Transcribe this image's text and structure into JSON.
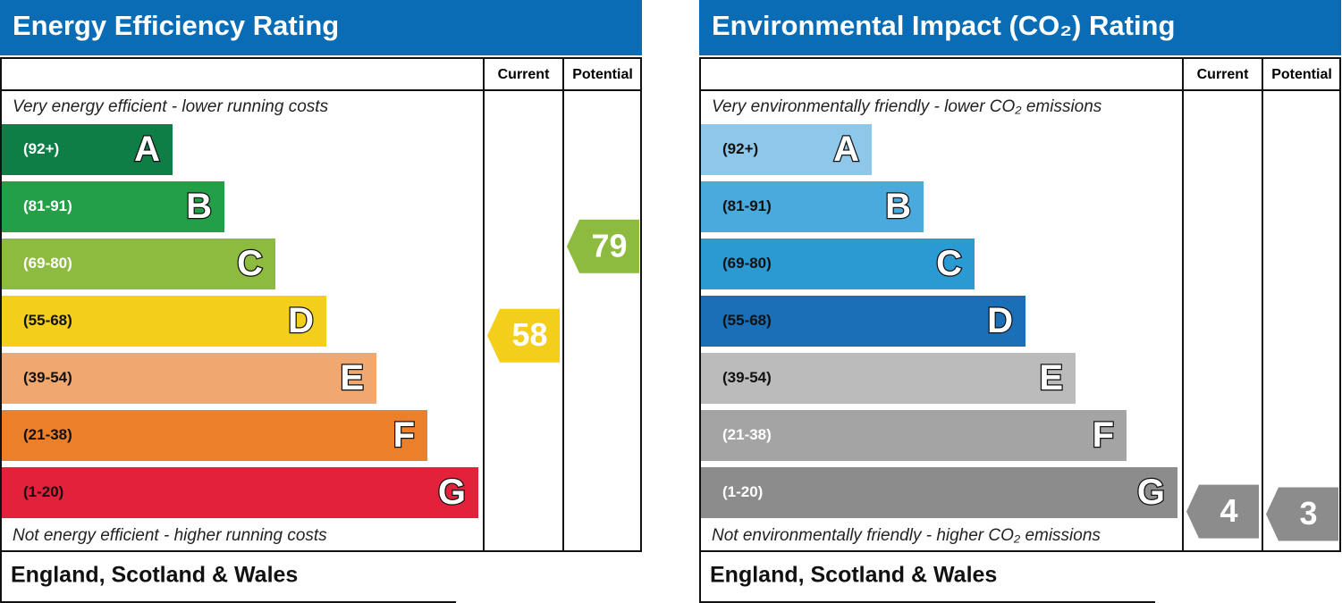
{
  "panels": [
    {
      "title": "Energy Efficiency Rating",
      "header": {
        "current": "Current",
        "potential": "Potential"
      },
      "top_note": "Very energy efficient - lower running costs",
      "bottom_note": "Not energy efficient - higher running costs",
      "bands": [
        {
          "range": "(92+)",
          "letter": "A",
          "color": "#0f7e46"
        },
        {
          "range": "(81-91)",
          "letter": "B",
          "color": "#23a047"
        },
        {
          "range": "(69-80)",
          "letter": "C",
          "color": "#8cbb40"
        },
        {
          "range": "(55-68)",
          "letter": "D",
          "color": "#f3ce1a"
        },
        {
          "range": "(39-54)",
          "letter": "E",
          "color": "#f1a86e"
        },
        {
          "range": "(21-38)",
          "letter": "F",
          "color": "#ec7f2a"
        },
        {
          "range": "(1-20)",
          "letter": "G",
          "color": "#e3213b"
        }
      ],
      "current": {
        "value": 58,
        "color": "#f3ce1a"
      },
      "potential": {
        "value": 79,
        "color": "#8cbb40"
      },
      "footer": "England, Scotland & Wales"
    },
    {
      "title": "Environmental Impact (CO₂) Rating",
      "header": {
        "current": "Current",
        "potential": "Potential"
      },
      "top_note": "Very environmentally friendly - lower CO₂ emissions",
      "bottom_note": "Not environmentally friendly - higher CO₂ emissions",
      "bands": [
        {
          "range": "(92+)",
          "letter": "A",
          "color": "#8dc8eb"
        },
        {
          "range": "(81-91)",
          "letter": "B",
          "color": "#4aa9dd"
        },
        {
          "range": "(69-80)",
          "letter": "C",
          "color": "#2b9ad3"
        },
        {
          "range": "(55-68)",
          "letter": "D",
          "color": "#1a6fb7"
        },
        {
          "range": "(39-54)",
          "letter": "E",
          "color": "#bbbbbb"
        },
        {
          "range": "(21-38)",
          "letter": "F",
          "color": "#a4a4a4"
        },
        {
          "range": "(1-20)",
          "letter": "G",
          "color": "#8c8c8c"
        }
      ],
      "current": {
        "value": 4,
        "color": "#8c8c8c"
      },
      "potential": {
        "value": 3,
        "color": "#8c8c8c"
      },
      "footer": "England, Scotland & Wales"
    }
  ]
}
